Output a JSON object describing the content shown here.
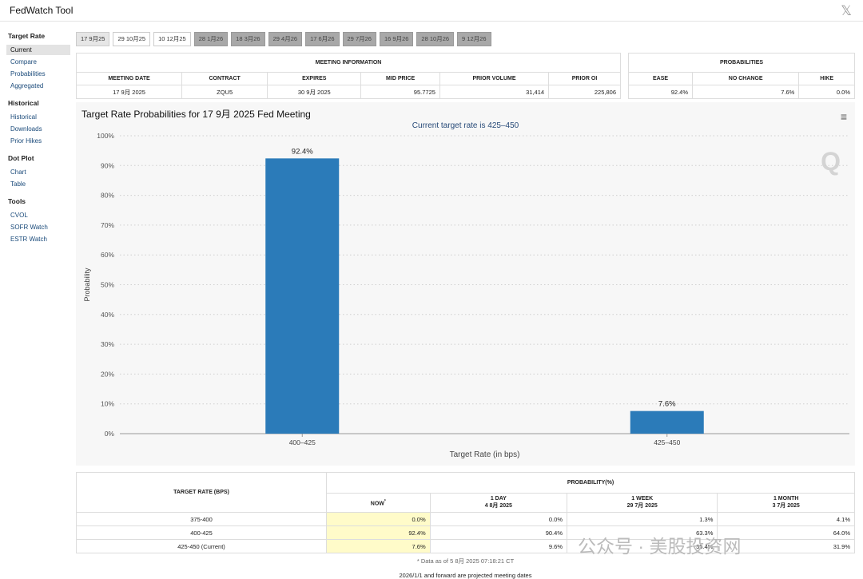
{
  "app": {
    "title": "FedWatch Tool",
    "close_glyph": "𝕏"
  },
  "sidebar": {
    "groups": [
      {
        "heading": "Target Rate",
        "items": [
          "Current",
          "Compare",
          "Probabilities",
          "Aggregated"
        ]
      },
      {
        "heading": "Historical",
        "items": [
          "Historical",
          "Downloads",
          "Prior Hikes"
        ]
      },
      {
        "heading": "Dot Plot",
        "items": [
          "Chart",
          "Table"
        ]
      },
      {
        "heading": "Tools",
        "items": [
          "CVOL",
          "SOFR Watch",
          "ESTR Watch"
        ]
      }
    ],
    "active_item": "Current"
  },
  "tabs": [
    "17 9月25",
    "29 10月25",
    "10 12月25",
    "28 1月26",
    "18 3月26",
    "29 4月26",
    "17 6月26",
    "29 7月26",
    "16 9月26",
    "28 10月26",
    "9 12月26"
  ],
  "meeting_info": {
    "title": "MEETING INFORMATION",
    "headers": [
      "MEETING DATE",
      "CONTRACT",
      "EXPIRES",
      "MID PRICE",
      "PRIOR VOLUME",
      "PRIOR OI"
    ],
    "values": [
      "17 9月 2025",
      "ZQU5",
      "30 9月 2025",
      "95.7725",
      "31,414",
      "225,806"
    ]
  },
  "probabilities": {
    "title": "PROBABILITIES",
    "headers": [
      "EASE",
      "NO CHANGE",
      "HIKE"
    ],
    "values": [
      "92.4%",
      "7.6%",
      "0.0%"
    ]
  },
  "chart": {
    "title": "Target Rate Probabilities for 17 9月 2025 Fed Meeting",
    "subtitle": "Current target rate is 425–450",
    "menu_icon": "≡",
    "watermark": "Q"
  },
  "chart_data": {
    "type": "bar",
    "categories": [
      "400–425",
      "425–450"
    ],
    "values": [
      92.4,
      7.6
    ],
    "data_labels": [
      "92.4%",
      "7.6%"
    ],
    "xlabel": "Target Rate (in bps)",
    "ylabel": "Probability",
    "ylim": [
      0,
      100
    ],
    "yticks": [
      "0%",
      "10%",
      "20%",
      "30%",
      "40%",
      "50%",
      "60%",
      "70%",
      "80%",
      "90%",
      "100%"
    ],
    "bar_color": "#2b7bb9",
    "grid": true
  },
  "prob_table": {
    "col_target": "TARGET RATE (BPS)",
    "col_prob": "PROBABILITY(%)",
    "sub_headers": [
      {
        "l1": "NOW",
        "l2": ""
      },
      {
        "l1": "1 DAY",
        "l2": "4 8月 2025"
      },
      {
        "l1": "1 WEEK",
        "l2": "29 7月 2025"
      },
      {
        "l1": "1 MONTH",
        "l2": "3 7月 2025"
      }
    ],
    "now_mark": "*",
    "rows": [
      {
        "rate": "375-400",
        "vals": [
          "0.0%",
          "0.0%",
          "1.3%",
          "4.1%"
        ]
      },
      {
        "rate": "400-425",
        "vals": [
          "92.4%",
          "90.4%",
          "63.3%",
          "64.0%"
        ]
      },
      {
        "rate": "425-450 (Current)",
        "vals": [
          "7.6%",
          "9.6%",
          "35.4%",
          "31.9%"
        ]
      }
    ],
    "footnote": "* Data as of 5 8月 2025 07:18:21 CT"
  },
  "footer": {
    "note": "2026/1/1 and forward are projected meeting dates"
  },
  "watermark_overlay": "公众号 · 美股投资网"
}
